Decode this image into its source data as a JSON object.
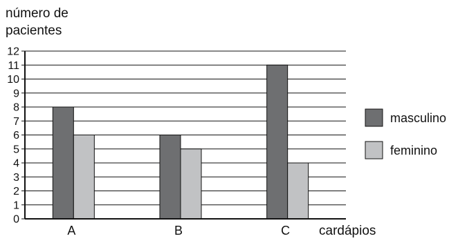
{
  "chart_data": {
    "type": "bar",
    "ylabel_lines": [
      "número de",
      "pacientes"
    ],
    "xlabel": "cardápios",
    "categories": [
      "A",
      "B",
      "C"
    ],
    "ylim": [
      0,
      12
    ],
    "yticks": [
      "0",
      "1",
      "2",
      "3",
      "4",
      "5",
      "6",
      "7",
      "8",
      "9",
      "10",
      "11",
      "12"
    ],
    "grid": true,
    "legend_position": "right",
    "series": [
      {
        "name": "masculino",
        "values": [
          8,
          6,
          11
        ],
        "color": "#6e6f71"
      },
      {
        "name": "feminino",
        "values": [
          6,
          5,
          4
        ],
        "color": "#c1c2c4"
      }
    ]
  }
}
